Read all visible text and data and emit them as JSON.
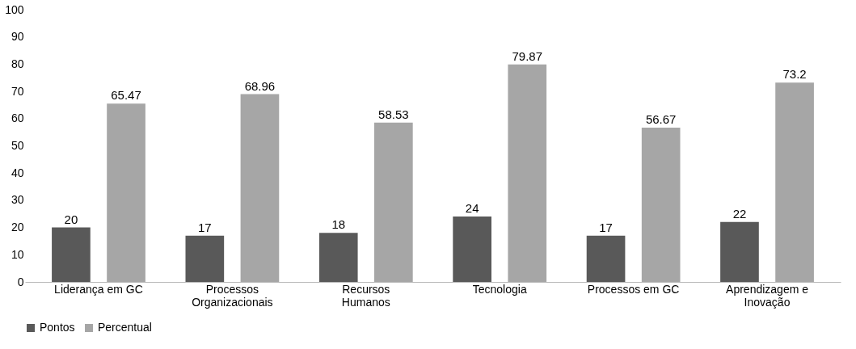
{
  "chart_data": {
    "type": "bar",
    "categories": [
      "Liderança em GC",
      "Processos Organizacionais",
      "Recursos Humanos",
      "Tecnologia",
      "Processos em GC",
      "Aprendizagem e Inovação"
    ],
    "series": [
      {
        "name": "Pontos",
        "color": "#595959",
        "values": [
          20,
          17,
          18,
          24,
          17,
          22
        ]
      },
      {
        "name": "Percentual",
        "color": "#a6a6a6",
        "values": [
          65.47,
          68.96,
          58.53,
          79.87,
          56.67,
          73.2
        ]
      }
    ],
    "ylim": [
      0,
      100
    ],
    "yticks": [
      0,
      10,
      20,
      30,
      40,
      50,
      60,
      70,
      80,
      90,
      100
    ],
    "grid": false,
    "legend": "bottom",
    "data_labels": true
  }
}
